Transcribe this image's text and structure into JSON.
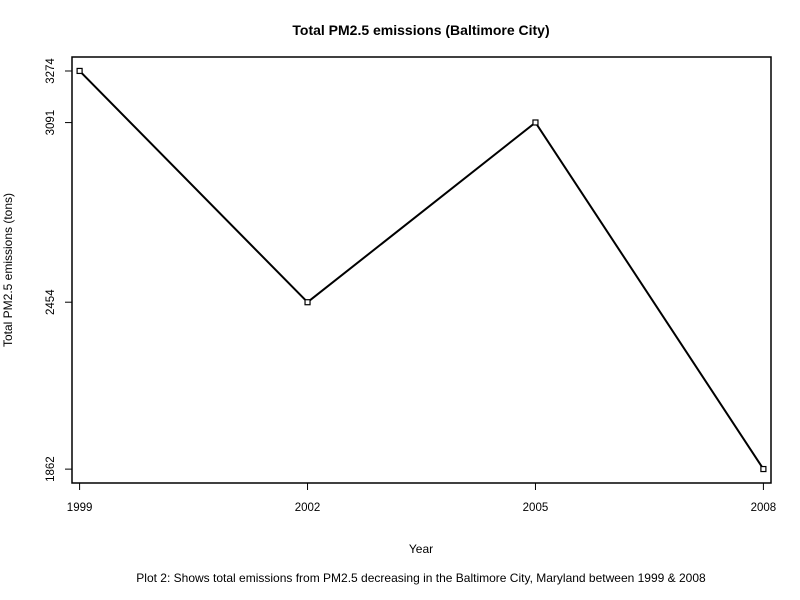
{
  "chart_data": {
    "type": "line",
    "title": "Total PM2.5 emissions (Baltimore City)",
    "xlabel": "Year",
    "ylabel": "Total PM2.5 emissions (tons)",
    "caption": "Plot 2: Shows total emissions from PM2.5 decreasing in the Baltimore City, Maryland between 1999 & 2008",
    "x": [
      1999,
      2002,
      2005,
      2008
    ],
    "x_tick_labels": [
      "1999",
      "2002",
      "2005",
      "2008"
    ],
    "y": [
      3274.18,
      2453.92,
      3091.35,
      1862.28
    ],
    "y_tick_values": [
      1862,
      2454,
      3091,
      3274
    ],
    "y_tick_labels": [
      "1862",
      "2454",
      "3091",
      "3274"
    ],
    "xlim": [
      1998.9,
      2008.1
    ],
    "ylim": [
      1812.8,
      3323.6
    ],
    "grid": false,
    "legend": "none",
    "line_color": "#000000",
    "marker": "open-square"
  }
}
